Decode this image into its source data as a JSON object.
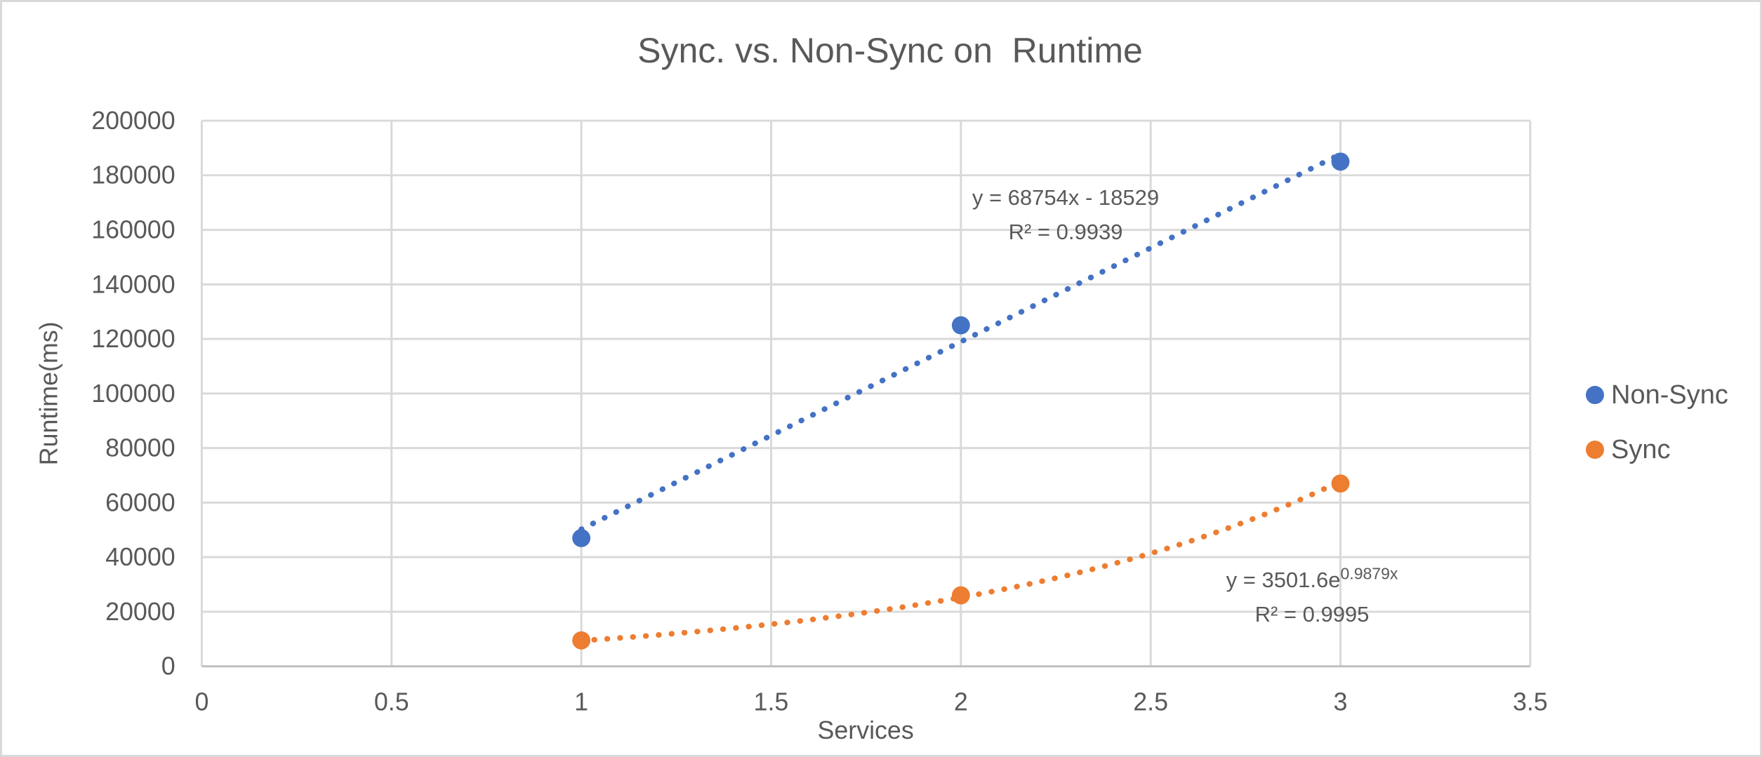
{
  "chart_data": {
    "type": "scatter",
    "title": "Sync. vs. Non-Sync on  Runtime",
    "xlabel": "Services",
    "ylabel": "Runtime(ms)",
    "xlim": [
      0,
      3.5
    ],
    "ylim": [
      0,
      200000
    ],
    "grid": true,
    "legend_position": "right",
    "x_tick_values": [
      0,
      0.5,
      1,
      1.5,
      2,
      2.5,
      3,
      3.5
    ],
    "x_ticks": [
      "0",
      "0.5",
      "1",
      "1.5",
      "2",
      "2.5",
      "3",
      "3.5"
    ],
    "y_tick_values": [
      0,
      20000,
      40000,
      60000,
      80000,
      100000,
      120000,
      140000,
      160000,
      180000,
      200000
    ],
    "y_ticks": [
      "0",
      "20000",
      "40000",
      "60000",
      "80000",
      "100000",
      "120000",
      "140000",
      "160000",
      "180000",
      "200000"
    ],
    "series": [
      {
        "name": "Non-Sync",
        "color": "#4472C4",
        "marker": "circle",
        "points": [
          {
            "x": 1,
            "y": 47000
          },
          {
            "x": 2,
            "y": 125000
          },
          {
            "x": 3,
            "y": 185000
          }
        ],
        "trendline": {
          "type": "linear",
          "line_style": "dotted",
          "slope": 68754,
          "intercept": -18529,
          "domain": [
            1,
            3
          ],
          "equation": "y = 68754x - 18529",
          "r2": "R² = 0.9939"
        }
      },
      {
        "name": "Sync",
        "color": "#ED7D31",
        "marker": "circle",
        "points": [
          {
            "x": 1,
            "y": 9500
          },
          {
            "x": 2,
            "y": 26000
          },
          {
            "x": 3,
            "y": 67000
          }
        ],
        "trendline": {
          "type": "exponential",
          "line_style": "dotted",
          "coefficient": 3501.6,
          "exponent": 0.9879,
          "domain": [
            1,
            3
          ],
          "equation_base": "y = 3501.6e",
          "equation_exponent": "0.9879x",
          "r2": "R² = 0.9995"
        }
      }
    ]
  },
  "colors": {
    "text": "#595959",
    "gridline": "#D9D9D9",
    "axis_line": "#BFBFBF",
    "background": "#FFFFFF",
    "border": "#D9D9D9",
    "non_sync": "#4472C4",
    "sync": "#ED7D31"
  }
}
